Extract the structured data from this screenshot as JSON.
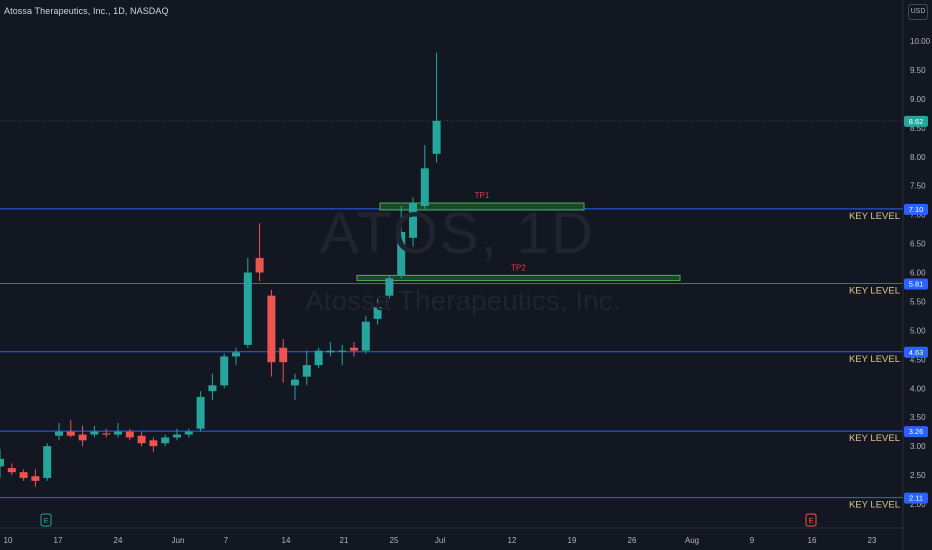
{
  "header": {
    "title": "Atossa Therapeutics, Inc., 1D, NASDAQ",
    "currency": "USD"
  },
  "watermark": {
    "symbol": "ATOS, 1D",
    "name": "Atossa Therapeutics, Inc."
  },
  "colors": {
    "background": "#131722",
    "up": "#26a69a",
    "down": "#ef5350",
    "key_line": "#2962ff",
    "price_tag": "#26a69a",
    "level_tag": "#2962ff",
    "tp_box": "#4caf50",
    "tp_label": "#f23645",
    "key_label": "#e0c48c",
    "earnings_up": "#26a69a",
    "earnings_down": "#ef5350"
  },
  "chart_data": {
    "type": "candlestick",
    "ylim": [
      1.85,
      10.55
    ],
    "y_ticks": [
      "10.00",
      "9.50",
      "9.00",
      "8.50",
      "8.00",
      "7.50",
      "7.00",
      "6.50",
      "6.00",
      "5.50",
      "5.00",
      "4.50",
      "4.00",
      "3.50",
      "3.00",
      "2.50",
      "2.00"
    ],
    "x_ticks": [
      "10",
      "17",
      "24",
      "Jun",
      "7",
      "14",
      "21",
      "25",
      "Jul",
      "12",
      "19",
      "26",
      "Aug",
      "9",
      "16",
      "23"
    ],
    "candles": [
      {
        "o": 2.65,
        "h": 2.95,
        "l": 2.45,
        "c": 2.78
      },
      {
        "o": 2.62,
        "h": 2.7,
        "l": 2.5,
        "c": 2.55
      },
      {
        "o": 2.55,
        "h": 2.6,
        "l": 2.4,
        "c": 2.45
      },
      {
        "o": 2.48,
        "h": 2.6,
        "l": 2.3,
        "c": 2.4
      },
      {
        "o": 2.45,
        "h": 3.05,
        "l": 2.4,
        "c": 3.0
      },
      {
        "o": 3.18,
        "h": 3.4,
        "l": 3.1,
        "c": 3.25
      },
      {
        "o": 3.25,
        "h": 3.45,
        "l": 3.15,
        "c": 3.18
      },
      {
        "o": 3.2,
        "h": 3.35,
        "l": 3.0,
        "c": 3.1
      },
      {
        "o": 3.2,
        "h": 3.35,
        "l": 3.15,
        "c": 3.25
      },
      {
        "o": 3.22,
        "h": 3.3,
        "l": 3.15,
        "c": 3.2
      },
      {
        "o": 3.2,
        "h": 3.4,
        "l": 3.15,
        "c": 3.25
      },
      {
        "o": 3.25,
        "h": 3.3,
        "l": 3.1,
        "c": 3.15
      },
      {
        "o": 3.18,
        "h": 3.25,
        "l": 3.0,
        "c": 3.05
      },
      {
        "o": 3.1,
        "h": 3.15,
        "l": 2.9,
        "c": 3.0
      },
      {
        "o": 3.05,
        "h": 3.2,
        "l": 3.0,
        "c": 3.15
      },
      {
        "o": 3.15,
        "h": 3.3,
        "l": 3.1,
        "c": 3.2
      },
      {
        "o": 3.2,
        "h": 3.3,
        "l": 3.15,
        "c": 3.25
      },
      {
        "o": 3.3,
        "h": 3.95,
        "l": 3.25,
        "c": 3.85
      },
      {
        "o": 3.95,
        "h": 4.25,
        "l": 3.8,
        "c": 4.05
      },
      {
        "o": 4.05,
        "h": 4.6,
        "l": 4.0,
        "c": 4.55
      },
      {
        "o": 4.55,
        "h": 4.7,
        "l": 4.4,
        "c": 4.62
      },
      {
        "o": 4.75,
        "h": 6.25,
        "l": 4.7,
        "c": 6.0
      },
      {
        "o": 6.25,
        "h": 6.85,
        "l": 5.85,
        "c": 6.0
      },
      {
        "o": 5.6,
        "h": 5.7,
        "l": 4.2,
        "c": 4.45
      },
      {
        "o": 4.7,
        "h": 4.85,
        "l": 4.1,
        "c": 4.45
      },
      {
        "o": 4.05,
        "h": 4.25,
        "l": 3.8,
        "c": 4.15
      },
      {
        "o": 4.2,
        "h": 4.65,
        "l": 4.05,
        "c": 4.4
      },
      {
        "o": 4.4,
        "h": 4.7,
        "l": 4.35,
        "c": 4.65
      },
      {
        "o": 4.62,
        "h": 4.8,
        "l": 4.55,
        "c": 4.65
      },
      {
        "o": 4.65,
        "h": 4.75,
        "l": 4.4,
        "c": 4.65
      },
      {
        "o": 4.7,
        "h": 4.8,
        "l": 4.55,
        "c": 4.65
      },
      {
        "o": 4.65,
        "h": 5.25,
        "l": 4.6,
        "c": 5.15
      },
      {
        "o": 5.2,
        "h": 5.55,
        "l": 5.1,
        "c": 5.4
      },
      {
        "o": 5.6,
        "h": 5.95,
        "l": 5.55,
        "c": 5.9
      },
      {
        "o": 5.95,
        "h": 7.15,
        "l": 5.9,
        "c": 6.7
      },
      {
        "o": 6.6,
        "h": 7.3,
        "l": 6.45,
        "c": 7.2
      },
      {
        "o": 7.15,
        "h": 8.2,
        "l": 7.1,
        "c": 7.8
      },
      {
        "o": 8.05,
        "h": 9.8,
        "l": 7.9,
        "c": 8.62
      }
    ],
    "key_levels": [
      {
        "value": 7.1,
        "tag": "7.10",
        "label": "KEY LEVEL"
      },
      {
        "value": 5.81,
        "tag": "5.81",
        "label": "KEY LEVEL"
      },
      {
        "value": 4.63,
        "tag": "4.63",
        "label": "KEY LEVEL"
      },
      {
        "value": 3.26,
        "tag": "3.26",
        "label": "KEY LEVEL"
      },
      {
        "value": 2.11,
        "tag": "2.11",
        "label": "KEY LEVEL"
      }
    ],
    "targets": [
      {
        "label": "TP1",
        "top": 7.2,
        "bottom": 7.08
      },
      {
        "label": "TP2",
        "top": 5.95,
        "bottom": 5.86
      }
    ],
    "current_price": {
      "value": 8.62,
      "tag": "8.62"
    },
    "earnings_markers": [
      "E",
      "E"
    ]
  }
}
